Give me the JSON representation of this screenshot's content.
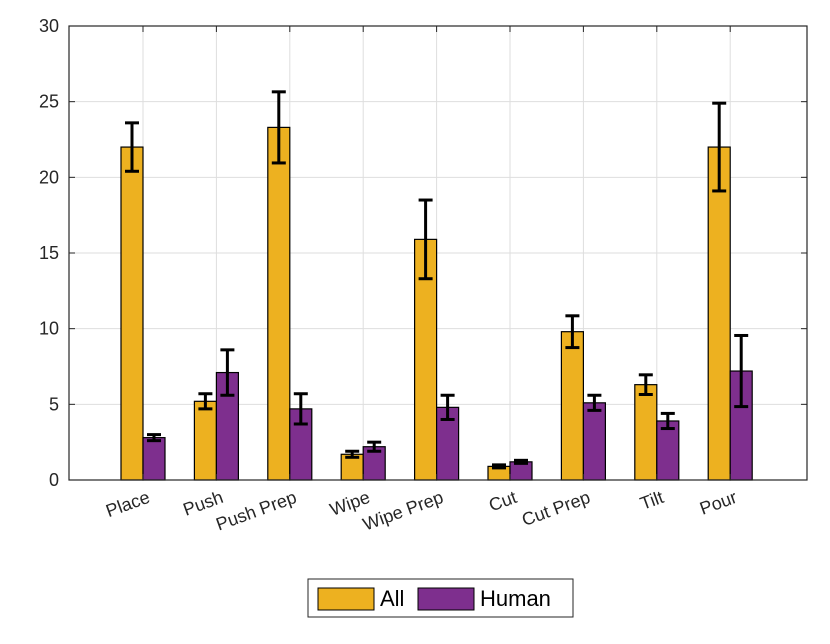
{
  "chart_data": {
    "type": "bar",
    "title": "",
    "xlabel": "",
    "ylabel": "",
    "ylim": [
      0,
      30
    ],
    "yticks": [
      0,
      5,
      10,
      15,
      20,
      25,
      30
    ],
    "grid": true,
    "legend_position": "bottom-center",
    "categories": [
      "Place",
      "Push",
      "Push Prep",
      "Wipe",
      "Wipe Prep",
      "Cut",
      "Cut Prep",
      "Tilt",
      "Pour"
    ],
    "series": [
      {
        "name": "All",
        "color": "#EDB120",
        "values": [
          22.0,
          5.2,
          23.3,
          1.7,
          15.9,
          0.9,
          9.8,
          6.3,
          22.0
        ],
        "error": [
          1.6,
          0.5,
          2.35,
          0.2,
          2.6,
          0.1,
          1.05,
          0.65,
          2.9
        ]
      },
      {
        "name": "Human",
        "color": "#7E2F8E",
        "values": [
          2.8,
          7.1,
          4.7,
          2.2,
          4.8,
          1.2,
          5.1,
          3.9,
          7.2
        ],
        "error": [
          0.2,
          1.5,
          1.0,
          0.3,
          0.8,
          0.1,
          0.5,
          0.5,
          2.35
        ]
      }
    ]
  }
}
